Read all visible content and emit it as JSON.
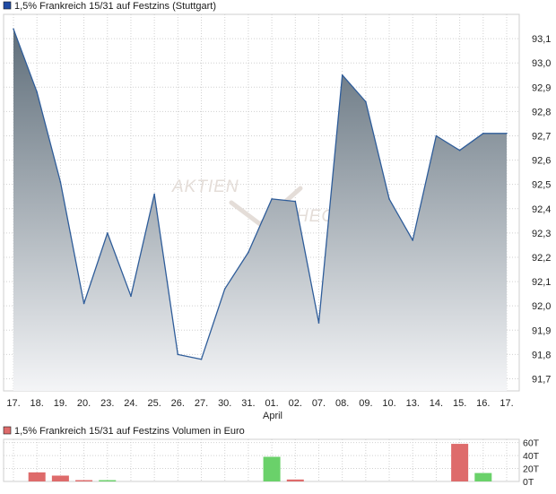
{
  "colors": {
    "main_line": "#2f5d9a",
    "area_top": "#5f6e7a",
    "area_bottom": "#f4f5f7",
    "vol_up": "#6ad16a",
    "vol_down": "#de6b6b",
    "legend_main": "#1f4aa3",
    "legend_vol": "#de6b6b"
  },
  "watermark": {
    "line1": "AKTIEN",
    "line2": "HEC"
  },
  "chart_data": [
    {
      "type": "area",
      "title": "1,5% Frankreich 15/31 auf Festzins (Stuttgart)",
      "legend_position": "top-left",
      "grid": true,
      "x_month_label": "April",
      "x_month_label_under": "01.",
      "x": [
        "17.",
        "18.",
        "19.",
        "20.",
        "23.",
        "24.",
        "25.",
        "26.",
        "27.",
        "30.",
        "31.",
        "01.",
        "02.",
        "07.",
        "08.",
        "09.",
        "10.",
        "13.",
        "14.",
        "15.",
        "16.",
        "17."
      ],
      "series": [
        {
          "name": "1,5% Frankreich 15/31 auf Festzins (Stuttgart)",
          "values": [
            93.14,
            92.88,
            92.51,
            92.01,
            92.3,
            92.04,
            92.46,
            91.8,
            91.78,
            92.07,
            92.22,
            92.44,
            92.43,
            91.93,
            92.95,
            92.84,
            92.44,
            92.27,
            92.7,
            92.64,
            92.71,
            92.71
          ]
        }
      ],
      "ylim": [
        91.65,
        93.2
      ],
      "yticks": [
        91.7,
        91.8,
        91.9,
        92.0,
        92.1,
        92.2,
        92.3,
        92.4,
        92.5,
        92.6,
        92.7,
        92.8,
        92.9,
        93.0,
        93.1
      ],
      "ytick_labels": [
        "91,7",
        "91,8",
        "91,9",
        "92,0",
        "92,1",
        "92,2",
        "92,3",
        "92,4",
        "92,5",
        "92,6",
        "92,7",
        "92,8",
        "92,9",
        "93,0",
        "93,1"
      ]
    },
    {
      "type": "bar",
      "title": "1,5% Frankreich 15/31 auf Festzins Volumen in Euro",
      "legend_position": "top-left",
      "grid": true,
      "x": [
        "17.",
        "18.",
        "19.",
        "20.",
        "23.",
        "24.",
        "25.",
        "26.",
        "27.",
        "30.",
        "31.",
        "01.",
        "02.",
        "07.",
        "08.",
        "09.",
        "10.",
        "13.",
        "14.",
        "15.",
        "16.",
        "17."
      ],
      "values": [
        0,
        14,
        9,
        2,
        2,
        0,
        0,
        0,
        0,
        0,
        0,
        38,
        3,
        0,
        0,
        0,
        0,
        0,
        0,
        58,
        13,
        0
      ],
      "colors": [
        "",
        "down",
        "down",
        "down",
        "up",
        "",
        "",
        "",
        "",
        "",
        "",
        "up",
        "down",
        "",
        "",
        "",
        "",
        "",
        "",
        "down",
        "up",
        ""
      ],
      "ylim": [
        0,
        65
      ],
      "yticks": [
        0,
        20,
        40,
        60
      ],
      "ytick_labels": [
        "0T",
        "20T",
        "40T",
        "60T"
      ]
    }
  ]
}
